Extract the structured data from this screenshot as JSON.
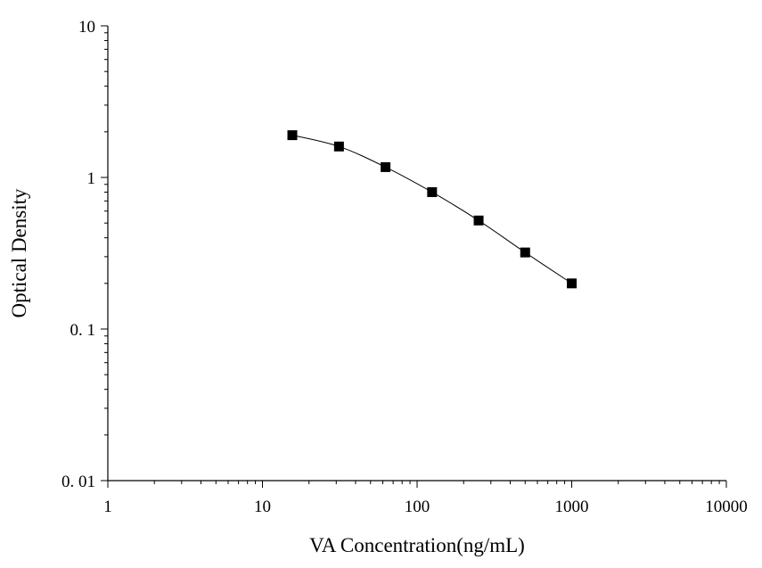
{
  "chart_data": {
    "type": "line",
    "title": "",
    "xlabel": "VA Concentration(ng/mL)",
    "ylabel": "Optical Density",
    "xscale": "log",
    "yscale": "log",
    "xlim": [
      1,
      10000
    ],
    "ylim": [
      0.01,
      10
    ],
    "x_ticks": [
      {
        "value": 1,
        "label": "1"
      },
      {
        "value": 10,
        "label": "10"
      },
      {
        "value": 100,
        "label": "100"
      },
      {
        "value": 1000,
        "label": "1000"
      },
      {
        "value": 10000,
        "label": "10000"
      }
    ],
    "y_ticks": [
      {
        "value": 0.01,
        "label": "0. 01"
      },
      {
        "value": 0.1,
        "label": "0. 1"
      },
      {
        "value": 1,
        "label": "1"
      },
      {
        "value": 10,
        "label": "10"
      }
    ],
    "grid": false,
    "legend": "none",
    "series": [
      {
        "marker": "square",
        "color": "#000000",
        "x": [
          15.6,
          31.25,
          62.5,
          125,
          250,
          500,
          1000
        ],
        "y": [
          1.9,
          1.6,
          1.17,
          0.8,
          0.52,
          0.32,
          0.2
        ]
      }
    ]
  }
}
